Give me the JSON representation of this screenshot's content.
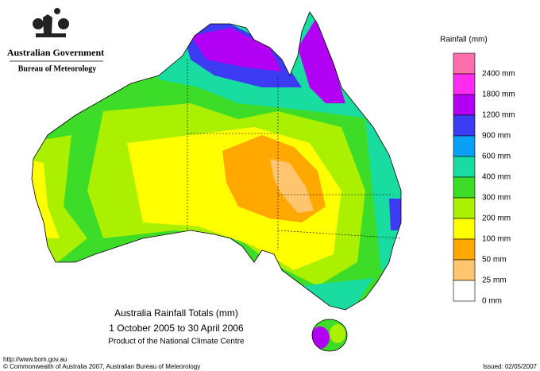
{
  "header": {
    "government": "Australian Government",
    "bureau": "Bureau of Meteorology"
  },
  "title": {
    "line1": "Australia Rainfall Totals (mm)",
    "line2": "1 October 2005 to 30 April 2006",
    "line3": "Product of the National Climate Centre"
  },
  "legend": {
    "title": "Rainfall (mm)",
    "colors": [
      "#ff6fae",
      "#ff2cf0",
      "#b200f5",
      "#3c3cf5",
      "#0aa0f5",
      "#19dca0",
      "#3cdc28",
      "#aaf000",
      "#ffff00",
      "#ffa800",
      "#ffc46e",
      "#ffffff"
    ],
    "labels": [
      "2400 mm",
      "1800 mm",
      "1200 mm",
      "900 mm",
      "600 mm",
      "400 mm",
      "300 mm",
      "200 mm",
      "100 mm",
      "50 mm",
      "25 mm",
      "0 mm"
    ]
  },
  "footer": {
    "url": "http://www.bom.gov.au",
    "copyright": "© Commonwealth of Australia 2007, Australian Bureau of Meteorology",
    "issued": "Issued: 02/05/2007"
  }
}
